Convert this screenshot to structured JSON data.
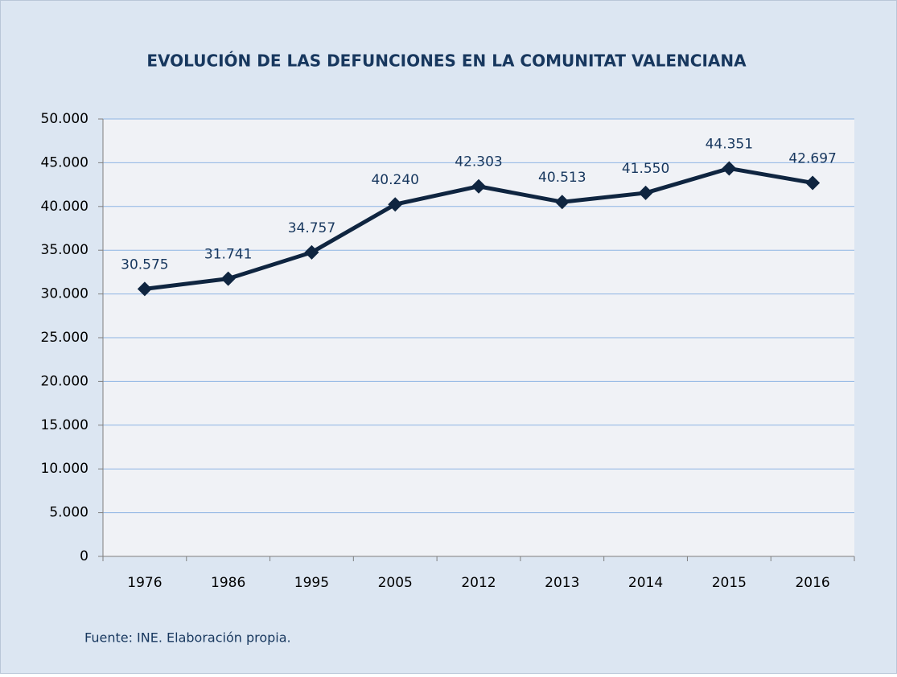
{
  "chart_data": {
    "type": "line",
    "title": "EVOLUCIÓN DE LAS DEFUNCIONES EN LA COMUNITAT VALENCIANA",
    "categories": [
      "1976",
      "1986",
      "1995",
      "2005",
      "2012",
      "2013",
      "2014",
      "2015",
      "2016"
    ],
    "values": [
      30575,
      31741,
      34757,
      40240,
      42303,
      40513,
      41550,
      44351,
      42697
    ],
    "value_labels": [
      "30.575",
      "31.741",
      "34.757",
      "40.240",
      "42.303",
      "40.513",
      "41.550",
      "44.351",
      "42.697"
    ],
    "color": "#0f2540",
    "ylim": [
      0,
      50000
    ],
    "yticks": [
      0,
      {
        "value": 5000,
        "label": "5.000"
      },
      {
        "value": 10000,
        "label": "10.000"
      },
      {
        "value": 15000,
        "label": "15.000"
      },
      {
        "value": 20000,
        "label": "20.000"
      },
      {
        "value": 25000,
        "label": "25.000"
      },
      {
        "value": 30000,
        "label": "30.000"
      },
      {
        "value": 35000,
        "label": "35.000"
      },
      {
        "value": 40000,
        "label": "40.000"
      },
      {
        "value": 45000,
        "label": "45.000"
      },
      {
        "value": 50000,
        "label": "50.000"
      }
    ],
    "grid": true,
    "source": "Fuente: INE. Elaboración propia."
  }
}
